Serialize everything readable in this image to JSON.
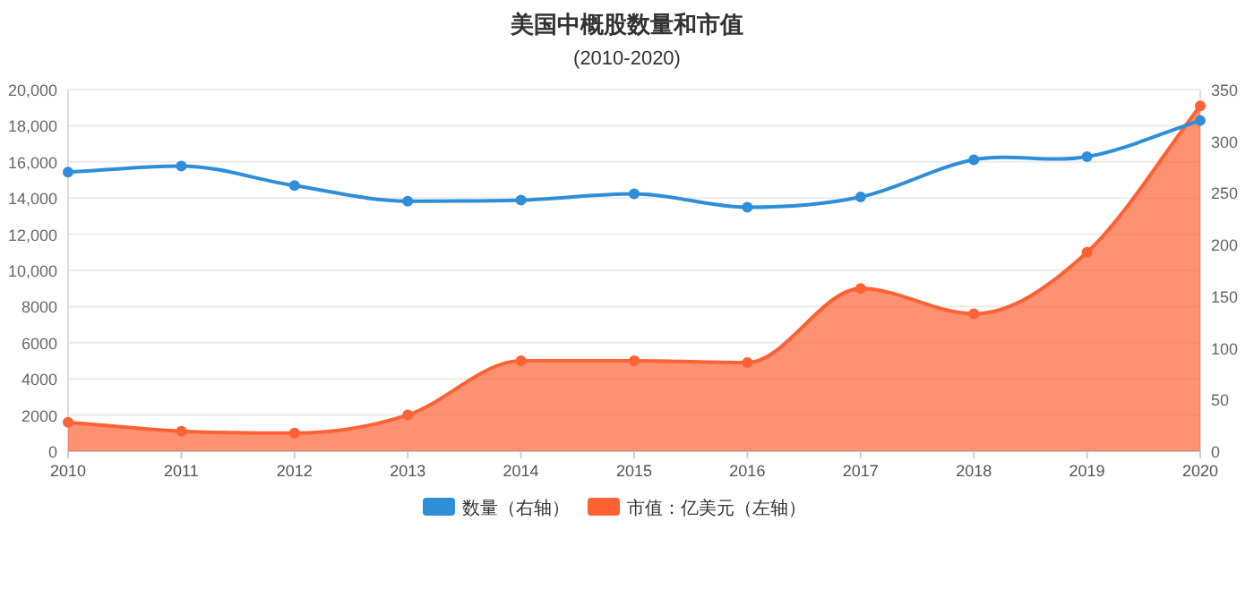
{
  "chart_data": {
    "type": "line",
    "title": "美国中概股数量和市值",
    "subtitle": "(2010-2020)",
    "categories": [
      "2010",
      "2011",
      "2012",
      "2013",
      "2014",
      "2015",
      "2016",
      "2017",
      "2018",
      "2019",
      "2020"
    ],
    "series": [
      {
        "name": "数量（右轴）",
        "color": "#2e8fd8",
        "axis": "y2",
        "values": [
          270,
          276,
          257,
          242,
          243,
          249,
          236,
          246,
          282,
          285,
          320
        ]
      },
      {
        "name": "市值：亿美元（左轴）",
        "color": "#fc6234",
        "type": "area",
        "values": [
          1600,
          1100,
          1000,
          2000,
          5000,
          5000,
          4900,
          9000,
          7600,
          11000,
          19100
        ]
      }
    ],
    "ylim": [
      0,
      20000
    ],
    "yticks": [
      0,
      2000,
      4000,
      6000,
      8000,
      {
        "value": 10000,
        "label": "10,000"
      },
      {
        "value": 12000,
        "label": "12,000"
      },
      {
        "value": 14000,
        "label": "14,000"
      },
      {
        "value": 16000,
        "label": "16,000"
      },
      {
        "value": 18000,
        "label": "18,000"
      },
      {
        "value": 20000,
        "label": "20,000"
      }
    ],
    "y2lim": [
      0,
      350
    ],
    "y2ticks": [
      0,
      50,
      100,
      150,
      200,
      250,
      300,
      350
    ],
    "grid": "y",
    "legend": "bottom",
    "marker": "circle",
    "line_style": "solid"
  }
}
